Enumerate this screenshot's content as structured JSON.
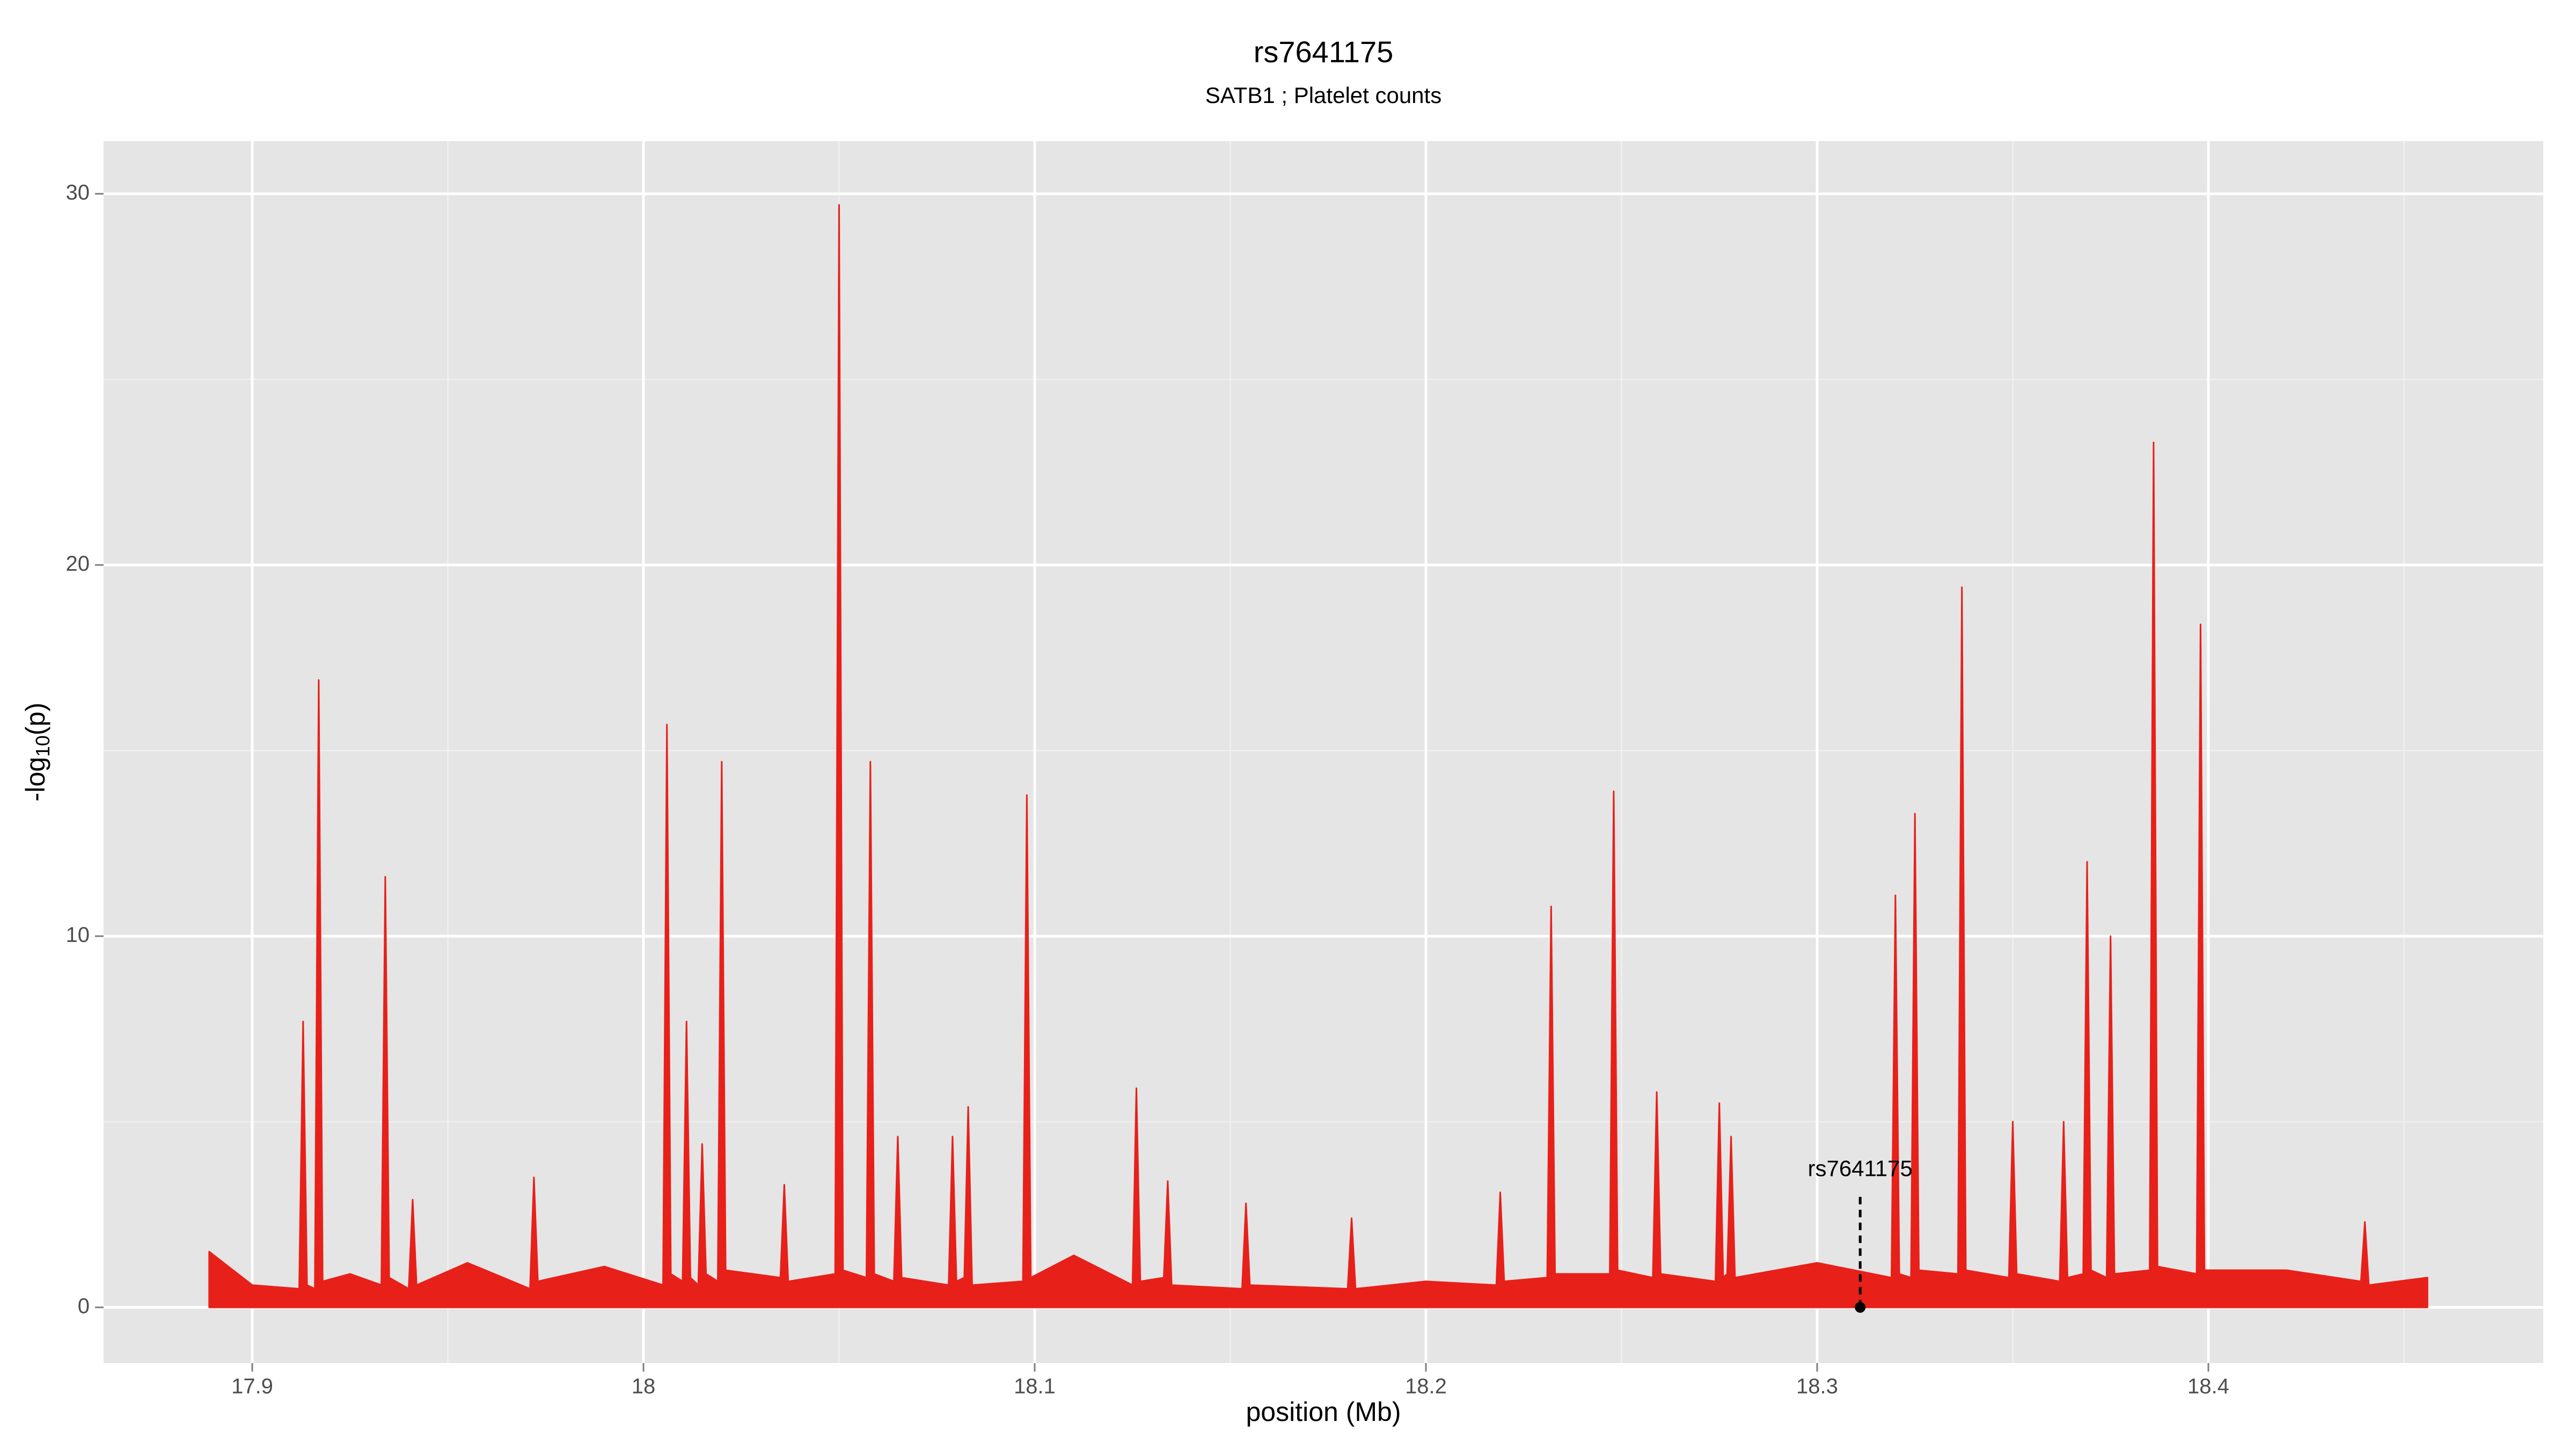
{
  "chart_data": {
    "type": "area",
    "title": "rs7641175",
    "subtitle": "SATB1 ; Platelet counts",
    "xlabel": "position (Mb)",
    "ylabel": [
      "-log",
      "10",
      "(p)"
    ],
    "xlim": [
      17.862,
      18.4856
    ],
    "xticks": [
      17.9,
      18.0,
      18.1,
      18.2,
      18.3,
      18.4
    ],
    "ylim": [
      -1.5,
      31.42
    ],
    "yticks": [
      0,
      10,
      20,
      30
    ],
    "grid": true,
    "minor_grid": true,
    "series": [
      {
        "color": "#e8201a",
        "x": [
          17.889,
          17.9,
          17.912,
          17.913,
          17.914,
          17.916,
          17.917,
          17.918,
          17.925,
          17.933,
          17.934,
          17.935,
          17.94,
          17.941,
          17.942,
          17.955,
          17.971,
          17.972,
          17.973,
          17.99,
          18.005,
          18.006,
          18.007,
          18.01,
          18.011,
          18.012,
          18.014,
          18.015,
          18.016,
          18.019,
          18.02,
          18.021,
          18.035,
          18.036,
          18.037,
          18.049,
          18.05,
          18.051,
          18.057,
          18.058,
          18.059,
          18.064,
          18.065,
          18.066,
          18.078,
          18.079,
          18.08,
          18.082,
          18.083,
          18.084,
          18.097,
          18.098,
          18.099,
          18.11,
          18.125,
          18.126,
          18.127,
          18.133,
          18.134,
          18.135,
          18.153,
          18.154,
          18.155,
          18.18,
          18.181,
          18.182,
          18.2,
          18.218,
          18.219,
          18.22,
          18.231,
          18.232,
          18.233,
          18.247,
          18.248,
          18.249,
          18.258,
          18.259,
          18.26,
          18.274,
          18.275,
          18.276,
          18.277,
          18.278,
          18.279,
          18.3,
          18.319,
          18.32,
          18.321,
          18.324,
          18.325,
          18.326,
          18.336,
          18.337,
          18.338,
          18.349,
          18.35,
          18.351,
          18.362,
          18.363,
          18.364,
          18.368,
          18.369,
          18.37,
          18.374,
          18.375,
          18.376,
          18.385,
          18.386,
          18.387,
          18.397,
          18.398,
          18.399,
          18.42,
          18.439,
          18.44,
          18.441,
          18.456
        ],
        "values": [
          1.5,
          0.6,
          0.5,
          7.7,
          0.6,
          0.5,
          16.9,
          0.7,
          0.9,
          0.6,
          11.6,
          0.8,
          0.5,
          2.9,
          0.6,
          1.2,
          0.5,
          3.5,
          0.7,
          1.1,
          0.6,
          15.7,
          0.9,
          0.7,
          7.7,
          0.8,
          0.6,
          4.4,
          0.9,
          0.7,
          14.7,
          1.0,
          0.8,
          3.3,
          0.7,
          0.9,
          29.7,
          1.0,
          0.8,
          14.7,
          0.9,
          0.7,
          4.6,
          0.8,
          0.6,
          4.6,
          0.7,
          0.8,
          5.4,
          0.6,
          0.7,
          13.8,
          0.8,
          1.4,
          0.6,
          5.9,
          0.7,
          0.8,
          3.4,
          0.6,
          0.5,
          2.8,
          0.6,
          0.5,
          2.4,
          0.5,
          0.7,
          0.6,
          3.1,
          0.7,
          0.8,
          10.8,
          0.9,
          0.9,
          13.9,
          1.0,
          0.8,
          5.8,
          0.9,
          0.7,
          5.5,
          0.8,
          0.9,
          4.6,
          0.8,
          1.2,
          0.8,
          11.1,
          0.9,
          0.8,
          13.3,
          1.0,
          0.9,
          19.4,
          1.0,
          0.8,
          5.0,
          0.9,
          0.7,
          5.0,
          0.8,
          0.9,
          12.0,
          1.0,
          0.8,
          10.0,
          0.9,
          1.0,
          23.3,
          1.1,
          0.9,
          18.4,
          1.0,
          1.0,
          0.7,
          2.3,
          0.6,
          0.8
        ]
      }
    ],
    "annotation": {
      "label": "rs7641175",
      "x": 18.311,
      "y": 0
    }
  }
}
